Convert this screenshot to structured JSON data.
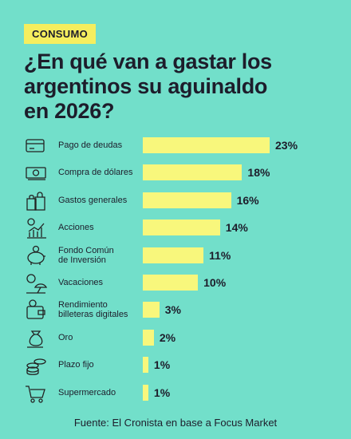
{
  "tag": "CONSUMO",
  "chart_data": {
    "type": "bar",
    "title": "¿En qué van a gastar los\nargentinos su aguinaldo\nen 2026?",
    "categories": [
      "Pago de deudas",
      "Compra de dólares",
      "Gastos generales",
      "Acciones",
      "Fondo Común\nde Inversión",
      "Vacaciones",
      "Rendimiento\nbilleteras digitales",
      "Oro",
      "Plazo fijo",
      "Supermercado"
    ],
    "values": [
      23,
      18,
      16,
      14,
      11,
      10,
      3,
      2,
      1,
      1
    ],
    "value_labels": [
      "23%",
      "18%",
      "16%",
      "14%",
      "11%",
      "10%",
      "3%",
      "2%",
      "1%",
      "1%"
    ],
    "color": "#f8f77c"
  },
  "source": "Fuente: El Cronista en base a Focus Market"
}
